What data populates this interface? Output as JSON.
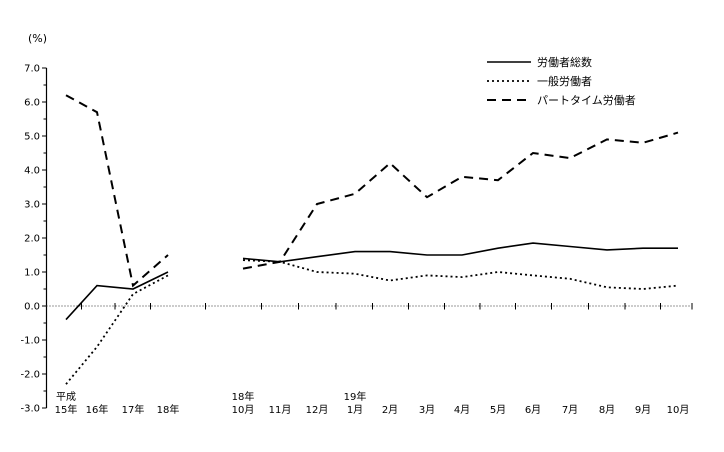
{
  "page": {
    "background": "#ffffff",
    "line_color": "#000000"
  },
  "chart_data": {
    "type": "line",
    "title": "",
    "unit_label": "(%)",
    "ylim": [
      -3.0,
      7.0
    ],
    "ytick_interval": 1.0,
    "ytick_minor_interval": 0.5,
    "ytick_labels": [
      "7.0",
      "6.0",
      "5.0",
      "4.0",
      "3.0",
      "2.0",
      "1.0",
      "0.0",
      "-1.0",
      "-2.0",
      "-3.0"
    ],
    "grid": "zero-baseline-only",
    "legend_position": "top-right-inside",
    "x_axis": {
      "annual_labels": [
        [
          "平成",
          "15年"
        ],
        [
          "",
          "16年"
        ],
        [
          "",
          "17年"
        ],
        [
          "",
          "18年"
        ]
      ],
      "monthly_labels": [
        [
          "18年",
          "10月"
        ],
        [
          "",
          "11月"
        ],
        [
          "",
          "12月"
        ],
        [
          "19年",
          "1月"
        ],
        [
          "",
          "2月"
        ],
        [
          "",
          "3月"
        ],
        [
          "",
          "4月"
        ],
        [
          "",
          "5月"
        ],
        [
          "",
          "6月"
        ],
        [
          "",
          "7月"
        ],
        [
          "",
          "8月"
        ],
        [
          "",
          "9月"
        ],
        [
          "",
          "10月"
        ]
      ]
    },
    "series": [
      {
        "name": "労働者総数",
        "line_style": "solid",
        "color": "#000000",
        "annual_values": [
          -0.4,
          0.6,
          0.5,
          1.0
        ],
        "monthly_values": [
          1.4,
          1.3,
          1.45,
          1.6,
          1.6,
          1.5,
          1.5,
          1.7,
          1.85,
          1.75,
          1.65,
          1.7,
          1.7
        ]
      },
      {
        "name": "一般労働者",
        "line_style": "dotted",
        "color": "#000000",
        "annual_values": [
          -2.3,
          -1.2,
          0.35,
          0.9
        ],
        "monthly_values": [
          1.35,
          1.3,
          1.0,
          0.95,
          0.75,
          0.9,
          0.85,
          1.0,
          0.9,
          0.8,
          0.55,
          0.5,
          0.6
        ]
      },
      {
        "name": "パートタイム労働者",
        "line_style": "long-dash",
        "color": "#000000",
        "annual_values": [
          6.2,
          5.7,
          0.6,
          1.5
        ],
        "monthly_values": [
          1.1,
          1.3,
          3.0,
          3.3,
          4.2,
          3.2,
          3.8,
          3.7,
          4.5,
          4.35,
          4.9,
          4.8,
          5.1
        ]
      }
    ]
  }
}
